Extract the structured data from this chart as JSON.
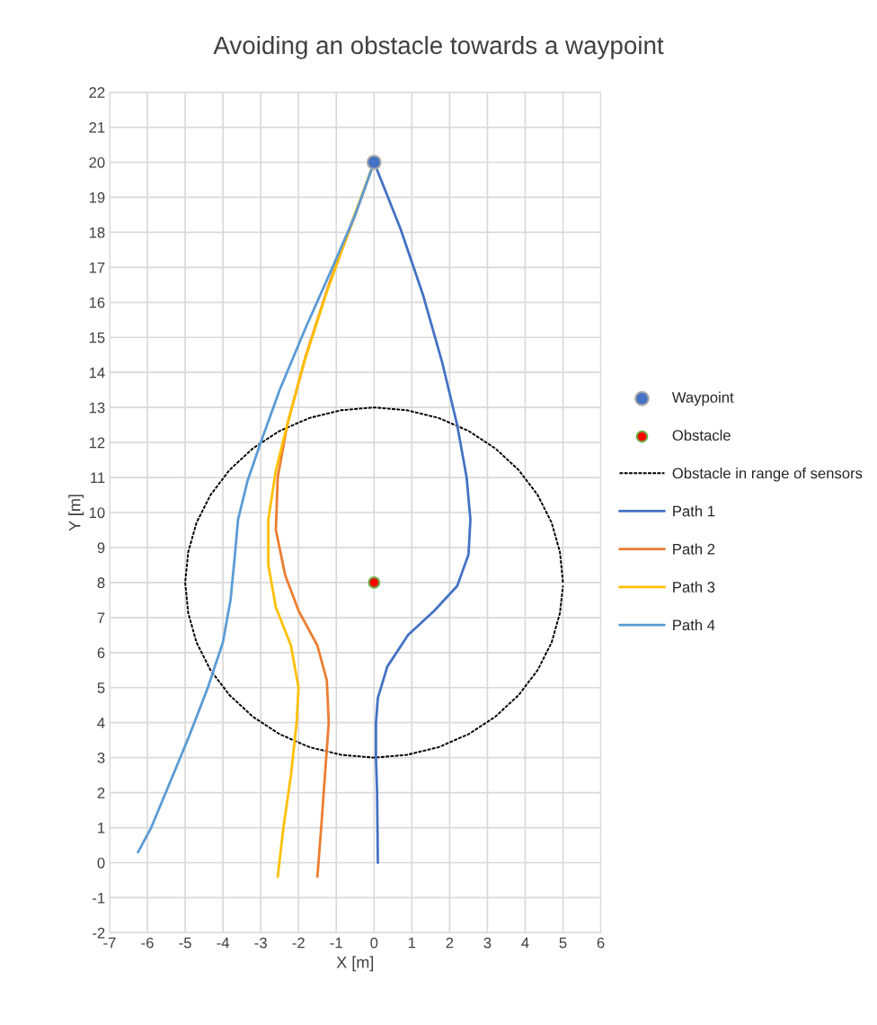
{
  "chart_data": {
    "type": "line",
    "title": "Avoiding an obstacle towards a waypoint",
    "xlabel": "X [m]",
    "ylabel": "Y [m]",
    "xlim": [
      -7,
      6
    ],
    "xticks": [
      -7,
      -6,
      -5,
      -4,
      -3,
      -2,
      -1,
      0,
      1,
      2,
      3,
      4,
      5,
      6
    ],
    "ylim": [
      -2,
      22
    ],
    "yticks": [
      -2,
      -1,
      0,
      1,
      2,
      3,
      4,
      5,
      6,
      7,
      8,
      9,
      10,
      11,
      12,
      13,
      14,
      15,
      16,
      17,
      18,
      19,
      20,
      21,
      22
    ],
    "grid": true,
    "legend": "right",
    "series": [
      {
        "name": "Waypoint",
        "type": "scatter",
        "marker": "circle",
        "color": "#4472c4",
        "x": [
          0
        ],
        "values": [
          20
        ]
      },
      {
        "name": "Obstacle",
        "type": "scatter",
        "marker": "circle",
        "color": "#ff0000",
        "x": [
          0
        ],
        "values": [
          8
        ]
      },
      {
        "name": "Obstacle in range of sensors",
        "type": "line",
        "line_style": "dotted",
        "color": "#000000",
        "x": [
          5,
          4.92,
          4.7,
          4.33,
          3.83,
          3.21,
          2.5,
          1.71,
          0.87,
          0,
          -0.87,
          -1.71,
          -2.5,
          -3.21,
          -3.83,
          -4.33,
          -4.7,
          -4.92,
          -5,
          -4.92,
          -4.7,
          -4.33,
          -3.83,
          -3.21,
          -2.5,
          -1.71,
          -0.87,
          0,
          0.87,
          1.71,
          2.5,
          3.21,
          3.83,
          4.33,
          4.7,
          4.92,
          5.0
        ],
        "values": [
          8,
          8.87,
          9.71,
          10.5,
          11.21,
          11.83,
          12.33,
          12.7,
          12.92,
          13,
          12.92,
          12.7,
          12.33,
          11.83,
          11.21,
          10.5,
          9.71,
          8.87,
          8,
          7.13,
          6.29,
          5.5,
          4.79,
          4.17,
          3.67,
          3.3,
          3.08,
          3,
          3.08,
          3.3,
          3.67,
          4.17,
          4.79,
          5.5,
          6.29,
          7.13,
          7.91
        ]
      },
      {
        "name": "Path 1",
        "type": "line",
        "color": "#4472c4",
        "x": [
          0.1,
          0.08,
          0.05,
          0.05,
          0.1,
          0.35,
          0.9,
          1.6,
          2.2,
          2.5,
          2.55,
          2.45,
          2.2,
          1.8,
          1.3,
          0.7,
          0
        ],
        "values": [
          0,
          2,
          3,
          4,
          4.7,
          5.6,
          6.5,
          7.2,
          7.9,
          8.8,
          9.8,
          11,
          12.5,
          14.3,
          16.2,
          18.1,
          20
        ]
      },
      {
        "name": "Path 2",
        "type": "line",
        "color": "#ed7d31",
        "x": [
          -1.5,
          -1.4,
          -1.3,
          -1.2,
          -1.25,
          -1.5,
          -2.0,
          -2.35,
          -2.6,
          -2.55,
          -2.3,
          -1.8,
          -1.2,
          -0.5,
          0
        ],
        "values": [
          -0.4,
          1,
          2.5,
          4,
          5.2,
          6.2,
          7.2,
          8.2,
          9.5,
          11,
          12.5,
          14.5,
          16.5,
          18.5,
          20
        ]
      },
      {
        "name": "Path 3",
        "type": "line",
        "color": "#ffc000",
        "x": [
          -2.55,
          -2.4,
          -2.2,
          -2.05,
          -2.0,
          -2.2,
          -2.6,
          -2.8,
          -2.8,
          -2.6,
          -2.3,
          -1.85,
          -1.25,
          -0.55,
          0
        ],
        "values": [
          -0.4,
          1,
          2.5,
          4,
          5,
          6.2,
          7.3,
          8.5,
          9.8,
          11.2,
          12.5,
          14.3,
          16.3,
          18.4,
          20
        ]
      },
      {
        "name": "Path 4",
        "type": "line",
        "color": "#5b9bd5",
        "x": [
          -6.25,
          -5.9,
          -5.4,
          -4.9,
          -4.4,
          -4.0,
          -3.8,
          -3.7,
          -3.6,
          -3.35,
          -3.0,
          -2.5,
          -1.8,
          -1.1,
          -0.5,
          0
        ],
        "values": [
          0.3,
          1,
          2.3,
          3.6,
          5,
          6.3,
          7.5,
          8.6,
          9.8,
          10.9,
          12,
          13.5,
          15.3,
          17,
          18.5,
          20
        ]
      }
    ]
  }
}
